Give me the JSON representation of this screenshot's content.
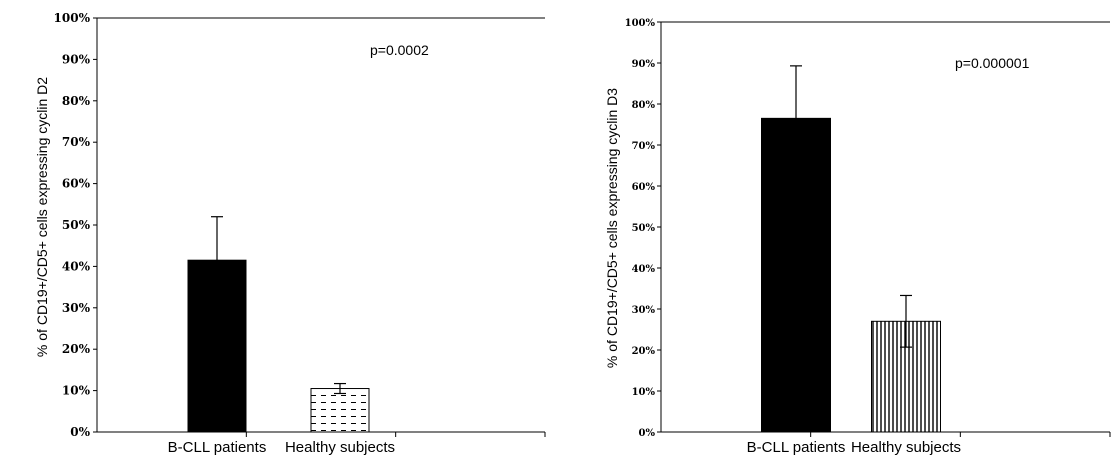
{
  "chart_data": [
    {
      "type": "bar",
      "categories": [
        "B-CLL patients",
        "Healthy subjects"
      ],
      "values": [
        41.5,
        10.5
      ],
      "errors": [
        10.5,
        1.2
      ],
      "ylabel": "% of CD19+/CD5+ cells expressing cyclin D2",
      "ylim": [
        0,
        100
      ],
      "yticks": [
        "0%",
        "10%",
        "20%",
        "30%",
        "40%",
        "50%",
        "60%",
        "70%",
        "80%",
        "90%",
        "100%"
      ],
      "annotation": "p=0.0002",
      "bar_styles": [
        "solid-black",
        "dashed-horizontal"
      ],
      "grid": false
    },
    {
      "type": "bar",
      "categories": [
        "B-CLL patients",
        "Healthy subjects"
      ],
      "values": [
        76.5,
        27
      ],
      "errors": [
        12.8,
        6.3
      ],
      "ylabel": "% of CD19+/CD5+ cells expressing cyclin D3",
      "ylim": [
        0,
        100
      ],
      "yticks": [
        "0%",
        "10%",
        "20%",
        "30%",
        "40%",
        "50%",
        "60%",
        "70%",
        "80%",
        "90%",
        "100%"
      ],
      "annotation": "p=0.000001",
      "bar_styles": [
        "solid-black",
        "vertical-stripes"
      ],
      "grid": false
    }
  ]
}
